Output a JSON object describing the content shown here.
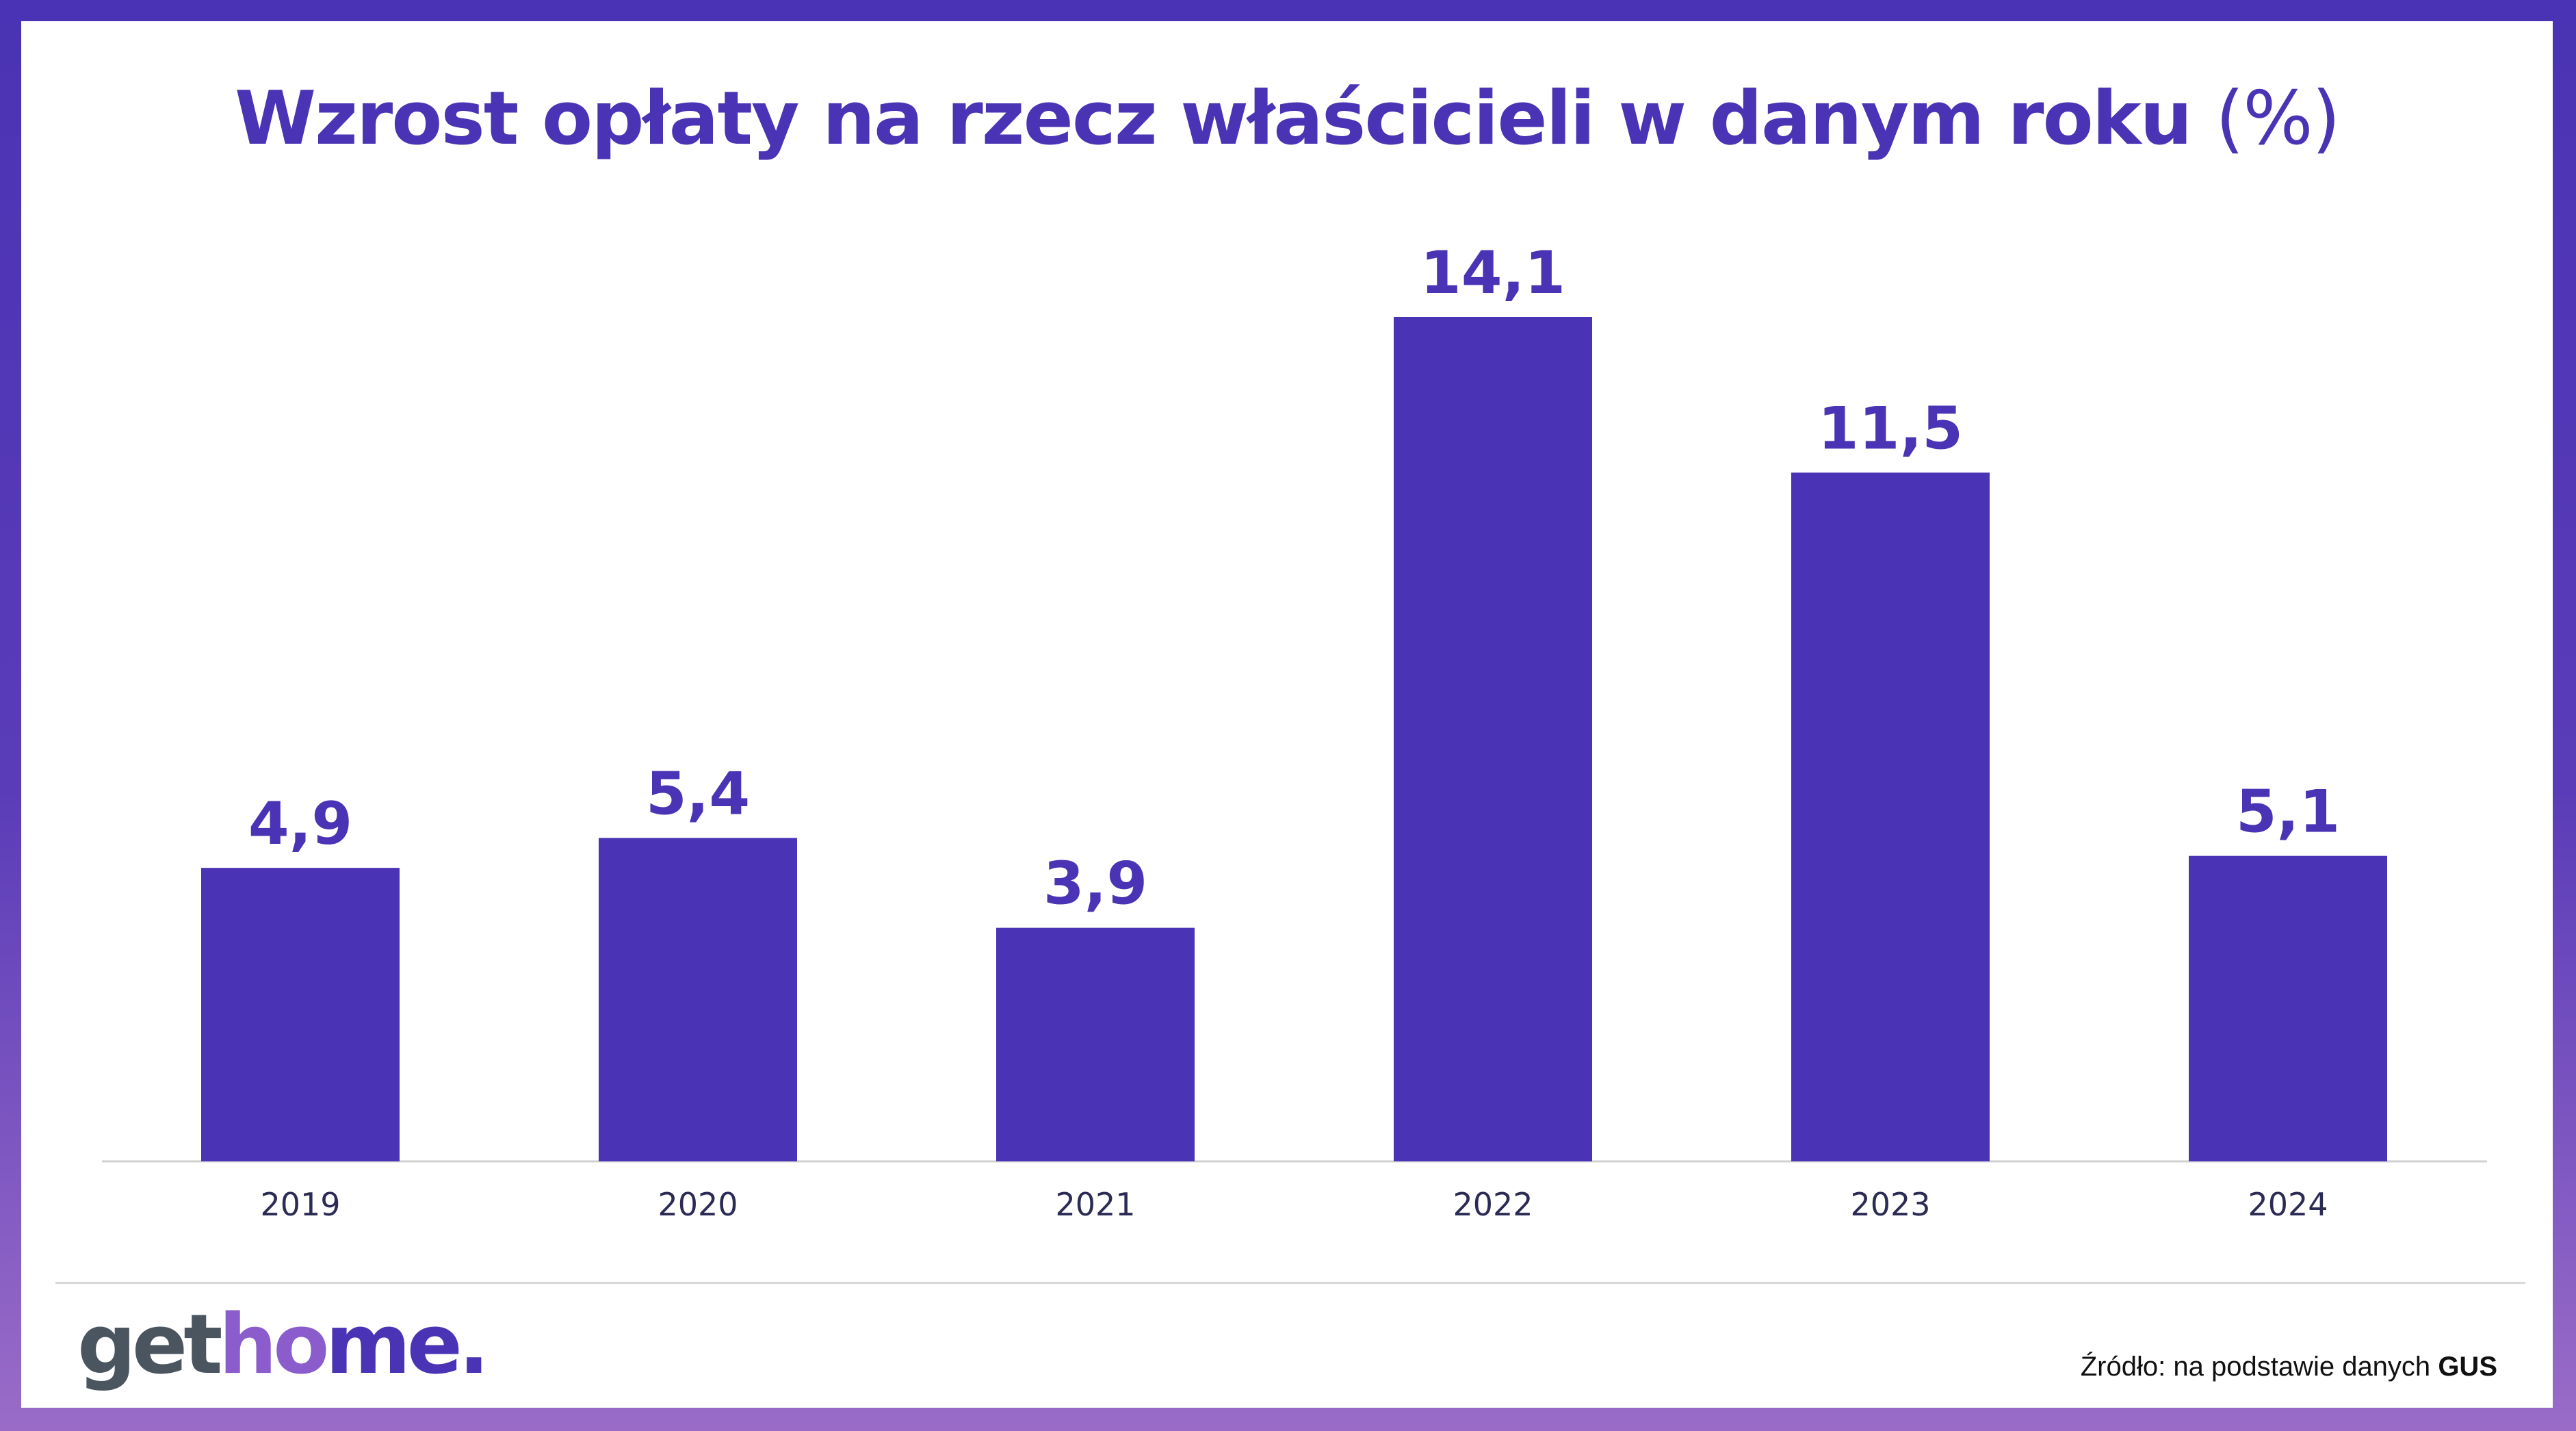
{
  "title": {
    "text": "Wzrost opłaty na rzecz właścicieli w danym roku",
    "unit": "(%)"
  },
  "chart_data": {
    "type": "bar",
    "categories": [
      "2019",
      "2020",
      "2021",
      "2022",
      "2023",
      "2024"
    ],
    "values": [
      4.9,
      5.4,
      3.9,
      14.1,
      11.5,
      5.1
    ],
    "value_labels": [
      "4,9",
      "5,4",
      "3,9",
      "14,1",
      "11,5",
      "5,1"
    ],
    "title": "Wzrost opłaty na rzecz właścicieli w danym roku (%)",
    "xlabel": "",
    "ylabel": "",
    "ylim": [
      0,
      14.1
    ],
    "grid": false,
    "legend": "none",
    "bar_color": "#4a33b4"
  },
  "logo": {
    "part1": "get",
    "part2": "ho",
    "part3": "me."
  },
  "source": {
    "prefix": "Źródło: na podstawie danych",
    "name": "GUS"
  },
  "colors": {
    "accent": "#4a33b4",
    "logo_gray": "#4a5560",
    "logo_purple": "#8a5ccc",
    "frame_bottom": "#9a6cc8"
  }
}
